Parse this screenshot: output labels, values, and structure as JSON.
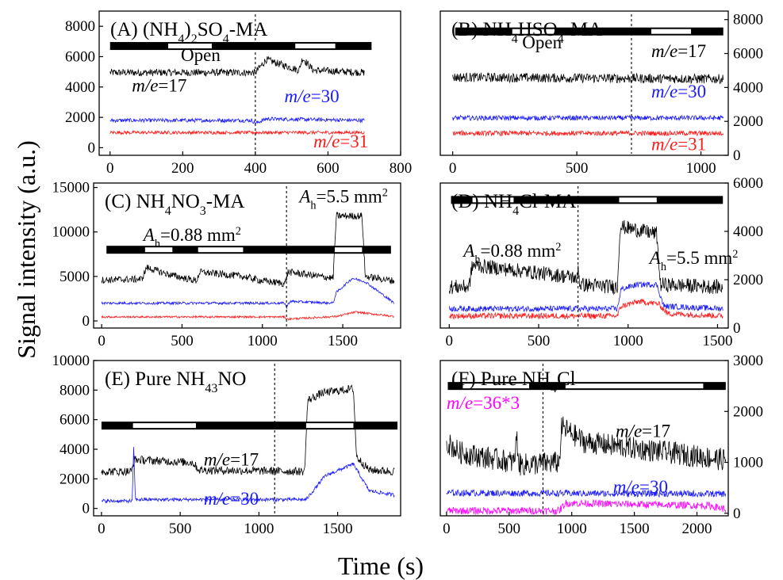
{
  "figure": {
    "ylabel": "Signal intensity (a.u.)",
    "xlabel": "Time (s)",
    "colors": {
      "frame": "#000000",
      "m17": "#000000",
      "m30": "#1a1aff",
      "m31": "#ff1a1a",
      "m36": "#ff00ff",
      "bar_dark": "#000000",
      "bar_open": "#ffffff"
    }
  },
  "chart_data": [
    {
      "id": "A",
      "type": "line",
      "title": "(A) (NH4)2SO4-MA",
      "title_parts": {
        "prefix": "(A) (NH",
        "s1": "4",
        "mid1": ")",
        "s2": "2",
        "mid2": "SO",
        "s3": "4",
        "suffix": "-MA"
      },
      "axis_side": "left",
      "xlim": [
        -30,
        800
      ],
      "ylim": [
        -500,
        9000
      ],
      "xticks": [
        0,
        200,
        400,
        600,
        800
      ],
      "yticks": [
        0,
        2000,
        4000,
        6000,
        8000
      ],
      "dashed_x": 400,
      "bar": {
        "x0": 0,
        "x1": 720,
        "y": 6700,
        "open": [
          [
            160,
            280
          ],
          [
            510,
            620
          ]
        ]
      },
      "annotations": [
        {
          "text": "Open",
          "x": 195,
          "y": 5700
        },
        {
          "text": "m/e=17",
          "italic_prefix": "m/e",
          "rest": "=17",
          "x": 60,
          "y": 3700,
          "color": "#000000"
        },
        {
          "text": "m/e=30",
          "italic_prefix": "m/e",
          "rest": "=30",
          "x": 480,
          "y": 3000,
          "color": "#1a1aff"
        },
        {
          "text": "m/e=31",
          "italic_prefix": "m/e",
          "rest": "=31",
          "x": 560,
          "y": 10,
          "color": "#ff1a1a"
        }
      ],
      "series": [
        {
          "name": "m/e=17",
          "color": "#000000",
          "noise": 300,
          "seg": [
            [
              0,
              4950
            ],
            [
              400,
              4950
            ],
            [
              430,
              5800
            ],
            [
              520,
              5100
            ],
            [
              530,
              5900
            ],
            [
              560,
              5100
            ],
            [
              700,
              4950
            ]
          ]
        },
        {
          "name": "m/e=30",
          "color": "#1a1aff",
          "noise": 160,
          "seg": [
            [
              0,
              1800
            ],
            [
              390,
              1800
            ],
            [
              400,
              1600
            ],
            [
              430,
              1900
            ],
            [
              700,
              1800
            ]
          ]
        },
        {
          "name": "m/e=31",
          "color": "#ff1a1a",
          "noise": 140,
          "seg": [
            [
              0,
              1000
            ],
            [
              700,
              1000
            ]
          ]
        }
      ]
    },
    {
      "id": "B",
      "type": "line",
      "title": "(B) NH4HSO4-MA",
      "title_parts": {
        "prefix": "(B) NH",
        "s1": "4",
        "mid1": "HSO",
        "s2": "4",
        "suffix": "-MA"
      },
      "axis_side": "right",
      "xlim": [
        -50,
        1110
      ],
      "ylim": [
        0,
        8500
      ],
      "xticks": [
        0,
        500,
        1000
      ],
      "yticks": [
        0,
        2000,
        4000,
        6000,
        8000
      ],
      "dashed_x": 720,
      "bar": {
        "x0": 10,
        "x1": 1090,
        "y": 7300,
        "open": [
          [
            240,
            410
          ],
          [
            800,
            960
          ]
        ]
      },
      "annotations": [
        {
          "text": "Open",
          "x": 280,
          "y": 6300
        },
        {
          "text": "m/e=17",
          "italic_prefix": "m/e",
          "rest": "=17",
          "x": 800,
          "y": 5800,
          "color": "#000000"
        },
        {
          "text": "m/e=30",
          "italic_prefix": "m/e",
          "rest": "=30",
          "x": 800,
          "y": 3400,
          "color": "#1a1aff"
        },
        {
          "text": "m/e=31",
          "italic_prefix": "m/e",
          "rest": "=31",
          "x": 800,
          "y": 300,
          "color": "#ff1a1a"
        }
      ],
      "series": [
        {
          "name": "m/e=17",
          "color": "#000000",
          "noise": 350,
          "seg": [
            [
              0,
              4600
            ],
            [
              1090,
              4500
            ]
          ]
        },
        {
          "name": "m/e=30",
          "color": "#1a1aff",
          "noise": 180,
          "seg": [
            [
              0,
              2200
            ],
            [
              1090,
              2200
            ]
          ]
        },
        {
          "name": "m/e=31",
          "color": "#ff1a1a",
          "noise": 180,
          "seg": [
            [
              0,
              1300
            ],
            [
              1090,
              1300
            ]
          ]
        }
      ]
    },
    {
      "id": "C",
      "type": "line",
      "title": "(C) NH4NO3-MA",
      "title_parts": {
        "prefix": "(C) NH",
        "s1": "4",
        "mid1": "NO",
        "s2": "3",
        "suffix": "-MA"
      },
      "axis_side": "left",
      "xlim": [
        -50,
        1860
      ],
      "ylim": [
        -800,
        15500
      ],
      "xticks": [
        0,
        500,
        1000,
        1500
      ],
      "yticks": [
        0,
        5000,
        10000,
        15000
      ],
      "dashed_x": 1150,
      "bar": {
        "x0": 30,
        "x1": 1800,
        "y": 8000,
        "open": [
          [
            270,
            440
          ],
          [
            600,
            880
          ],
          [
            1450,
            1620
          ]
        ]
      },
      "annotations": [
        {
          "text": "Ah=0.88 mm2",
          "italic_prefix": "A",
          "sub": "h",
          "rest": "=0.88 mm",
          "sup": "2",
          "x": 260,
          "y": 9000,
          "color": "#000000"
        },
        {
          "text": "Ah=5.5 mm2",
          "italic_prefix": "A",
          "sub": "h",
          "rest": "=5.5 mm",
          "sup": "2",
          "x": 1230,
          "y": 13300,
          "color": "#000000"
        }
      ],
      "series": [
        {
          "name": "m/e=17",
          "color": "#000000",
          "noise": 500,
          "seg": [
            [
              0,
              4600
            ],
            [
              250,
              4700
            ],
            [
              280,
              6000
            ],
            [
              420,
              5200
            ],
            [
              590,
              4500
            ],
            [
              610,
              5500
            ],
            [
              880,
              5000
            ],
            [
              1000,
              4500
            ],
            [
              1140,
              4200
            ],
            [
              1160,
              5500
            ],
            [
              1440,
              4800
            ],
            [
              1460,
              11800
            ],
            [
              1620,
              11800
            ],
            [
              1640,
              5000
            ],
            [
              1820,
              4500
            ]
          ]
        },
        {
          "name": "m/e=30",
          "color": "#1a1aff",
          "noise": 180,
          "seg": [
            [
              0,
              2000
            ],
            [
              1140,
              2000
            ],
            [
              1150,
              1500
            ],
            [
              1170,
              2200
            ],
            [
              1440,
              2000
            ],
            [
              1460,
              3200
            ],
            [
              1560,
              4800
            ],
            [
              1640,
              4400
            ],
            [
              1820,
              2000
            ]
          ]
        },
        {
          "name": "m/e=31",
          "color": "#ff1a1a",
          "noise": 140,
          "seg": [
            [
              0,
              450
            ],
            [
              1140,
              450
            ],
            [
              1150,
              200
            ],
            [
              1460,
              500
            ],
            [
              1580,
              1000
            ],
            [
              1820,
              500
            ]
          ]
        }
      ]
    },
    {
      "id": "D",
      "type": "line",
      "title": "(D) NH4Cl-MA",
      "title_parts": {
        "prefix": "(D) NH",
        "s1": "4",
        "suffix": "Cl-MA"
      },
      "axis_side": "right",
      "xlim": [
        -50,
        1560
      ],
      "ylim": [
        0,
        6000
      ],
      "xticks": [
        0,
        500,
        1000,
        1500
      ],
      "yticks": [
        0,
        2000,
        4000,
        6000
      ],
      "dashed_x": 720,
      "bar": {
        "x0": 10,
        "x1": 1530,
        "y": 5300,
        "open": [
          [
            130,
            360
          ],
          [
            950,
            1160
          ]
        ]
      },
      "annotations": [
        {
          "text": "Ah=0.88 mm2",
          "italic_prefix": "A",
          "sub": "h",
          "rest": "=0.88 mm",
          "sup": "2",
          "x": 80,
          "y": 2950,
          "color": "#000000"
        },
        {
          "text": "Ah=5.5 mm2",
          "italic_prefix": "A",
          "sub": "h",
          "rest": "=5.5 mm",
          "sup": "2",
          "x": 1120,
          "y": 2650,
          "color": "#000000"
        }
      ],
      "series": [
        {
          "name": "m/e=17",
          "color": "#000000",
          "noise": 380,
          "seg": [
            [
              0,
              1700
            ],
            [
              110,
              1700
            ],
            [
              130,
              2600
            ],
            [
              360,
              2400
            ],
            [
              700,
              2100
            ],
            [
              710,
              1800
            ],
            [
              720,
              2600
            ],
            [
              730,
              1800
            ],
            [
              940,
              1700
            ],
            [
              955,
              4200
            ],
            [
              1160,
              3900
            ],
            [
              1180,
              1800
            ],
            [
              1530,
              1700
            ]
          ]
        },
        {
          "name": "m/e=30",
          "color": "#1a1aff",
          "noise": 150,
          "seg": [
            [
              0,
              800
            ],
            [
              940,
              800
            ],
            [
              960,
              1600
            ],
            [
              1050,
              1800
            ],
            [
              1160,
              1800
            ],
            [
              1200,
              900
            ],
            [
              1530,
              800
            ]
          ]
        },
        {
          "name": "m/e=31",
          "color": "#ff1a1a",
          "noise": 150,
          "seg": [
            [
              0,
              500
            ],
            [
              940,
              500
            ],
            [
              960,
              900
            ],
            [
              1060,
              1100
            ],
            [
              1170,
              1000
            ],
            [
              1220,
              600
            ],
            [
              1530,
              500
            ]
          ]
        }
      ]
    },
    {
      "id": "E",
      "type": "line",
      "title": "(E) Pure NH4NO3",
      "title_parts": {
        "prefix": "(E) Pure NH",
        "s1": "4",
        "suffix": "NO",
        "s2": "3"
      },
      "axis_side": "left",
      "xlim": [
        -50,
        1900
      ],
      "ylim": [
        -500,
        10000
      ],
      "xticks": [
        0,
        500,
        1000,
        1500
      ],
      "yticks": [
        0,
        2000,
        4000,
        6000,
        8000,
        10000
      ],
      "dashed_x": 1100,
      "bar": {
        "x0": 0,
        "x1": 1880,
        "y": 5600,
        "open": [
          [
            200,
            600
          ],
          [
            1300,
            1600
          ]
        ]
      },
      "annotations": [
        {
          "text": "m/e=17",
          "italic_prefix": "m/e",
          "rest": "=17",
          "x": 650,
          "y": 2900,
          "color": "#000000"
        },
        {
          "text": "m/e=30",
          "italic_prefix": "m/e",
          "rest": "=30",
          "x": 650,
          "y": 250,
          "color": "#1a1aff"
        }
      ],
      "series": [
        {
          "name": "m/e=17",
          "color": "#000000",
          "noise": 350,
          "seg": [
            [
              0,
              2500
            ],
            [
              190,
              2500
            ],
            [
              210,
              3300
            ],
            [
              580,
              3100
            ],
            [
              620,
              2600
            ],
            [
              1290,
              2500
            ],
            [
              1310,
              7300
            ],
            [
              1400,
              7800
            ],
            [
              1600,
              8100
            ],
            [
              1620,
              3500
            ],
            [
              1700,
              2600
            ],
            [
              1860,
              2500
            ]
          ]
        },
        {
          "name": "m/e=30",
          "color": "#1a1aff",
          "noise": 150,
          "seg": [
            [
              0,
              500
            ],
            [
              195,
              500
            ],
            [
              205,
              4200
            ],
            [
              215,
              600
            ],
            [
              1300,
              600
            ],
            [
              1420,
              2200
            ],
            [
              1600,
              3000
            ],
            [
              1700,
              1200
            ],
            [
              1860,
              900
            ]
          ]
        }
      ]
    },
    {
      "id": "F",
      "type": "line",
      "title": "(F) Pure NH4Cl",
      "title_parts": {
        "prefix": "(F) Pure NH",
        "s1": "4",
        "suffix": "Cl"
      },
      "axis_side": "right",
      "xlim": [
        -50,
        2250
      ],
      "ylim": [
        -50,
        3000
      ],
      "xticks": [
        0,
        500,
        1000,
        1500,
        2000
      ],
      "yticks": [
        0,
        1000,
        2000,
        3000
      ],
      "dashed_x": 770,
      "bar": {
        "x0": 10,
        "x1": 2230,
        "y": 2500,
        "open": [
          [
            130,
            660
          ],
          [
            950,
            2050
          ]
        ]
      },
      "annotations": [
        {
          "text": "m/e=36*3",
          "italic_prefix": "m/e",
          "rest": "=36*3",
          "x": 0,
          "y": 2050,
          "color": "#ff00ff"
        },
        {
          "text": "m/e=17",
          "italic_prefix": "m/e",
          "rest": "=17",
          "x": 1350,
          "y": 1500,
          "color": "#000000"
        },
        {
          "text": "m/e=30",
          "italic_prefix": "m/e",
          "rest": "=30",
          "x": 1330,
          "y": 400,
          "color": "#1a1aff"
        }
      ],
      "series": [
        {
          "name": "m/e=17",
          "color": "#000000",
          "noise": 280,
          "seg": [
            [
              0,
              1400
            ],
            [
              100,
              1200
            ],
            [
              300,
              1100
            ],
            [
              540,
              1000
            ],
            [
              560,
              1500
            ],
            [
              580,
              950
            ],
            [
              900,
              1000
            ],
            [
              920,
              1700
            ],
            [
              1100,
              1400
            ],
            [
              2230,
              1050
            ]
          ]
        },
        {
          "name": "m/e=30",
          "color": "#1a1aff",
          "noise": 80,
          "seg": [
            [
              0,
              400
            ],
            [
              2230,
              380
            ]
          ]
        },
        {
          "name": "m/e=36*3",
          "color": "#ff00ff",
          "noise": 90,
          "seg": [
            [
              0,
              50
            ],
            [
              900,
              50
            ],
            [
              950,
              200
            ],
            [
              2100,
              150
            ],
            [
              2230,
              80
            ]
          ]
        }
      ]
    }
  ]
}
